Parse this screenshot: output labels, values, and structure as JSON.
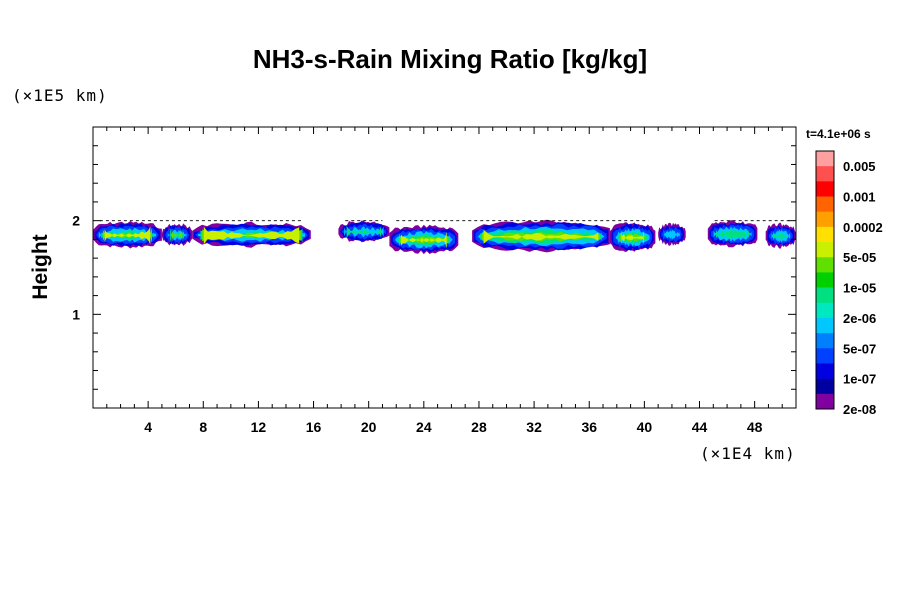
{
  "chart_data": {
    "type": "heatmap",
    "title": "NH3-s-Rain Mixing Ratio [kg/kg]",
    "ylabel": "Height",
    "xlabel": "",
    "x_unit": "(×1E4 km)",
    "y_unit": "(×1E5 km)",
    "time_label": "t=4.1e+06 s",
    "xlim": [
      0,
      51
    ],
    "ylim": [
      0,
      3
    ],
    "x_ticks": [
      4,
      8,
      12,
      16,
      20,
      24,
      28,
      32,
      36,
      40,
      44,
      48
    ],
    "y_ticks": [
      1,
      2
    ],
    "colorbar": {
      "labels": [
        "0.005",
        "0.001",
        "0.0002",
        "5e-05",
        "1e-05",
        "2e-06",
        "5e-07",
        "1e-07",
        "2e-08"
      ],
      "colors": [
        "#ffa0a0",
        "#ff5050",
        "#ff0000",
        "#ff6400",
        "#ffa000",
        "#ffe000",
        "#c8f000",
        "#60e000",
        "#00d000",
        "#00e080",
        "#00e8c0",
        "#00c8ff",
        "#0080ff",
        "#0040ff",
        "#0000e0",
        "#0000a0",
        "#8000a0"
      ]
    },
    "cloud_layer": {
      "base_height": 1.7,
      "top_height": 1.98,
      "segments_x": [
        [
          0,
          15.8
        ],
        [
          17.8,
          51
        ],
        [
          44.5,
          51
        ]
      ],
      "description": "thin layer concentrated near height 1.8 with peak intensity around x=2, 8, 23 and 31"
    }
  }
}
